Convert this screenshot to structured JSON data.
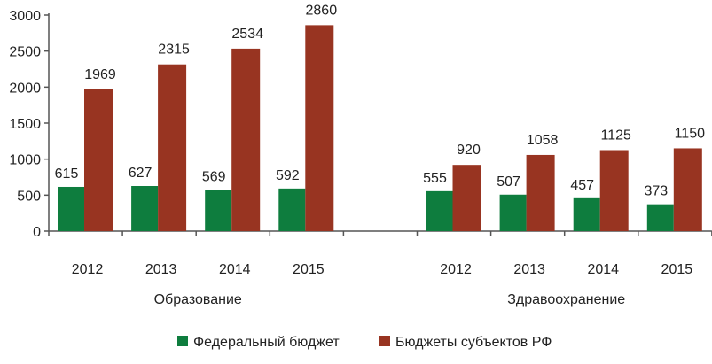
{
  "chart_data": {
    "type": "bar",
    "title": "",
    "xlabel": "",
    "ylabel": "",
    "ylim": [
      0,
      3000
    ],
    "yticks": [
      0,
      500,
      1000,
      1500,
      2000,
      2500,
      3000
    ],
    "grid": false,
    "legend_position": "bottom",
    "groups": [
      {
        "label": "Образование",
        "categories": [
          "2012",
          "2013",
          "2014",
          "2015"
        ]
      },
      {
        "label": "Здравоохранение",
        "categories": [
          "2012",
          "2013",
          "2014",
          "2015"
        ]
      }
    ],
    "series": [
      {
        "name": "Федеральный бюджет",
        "color": "#0e7d3e",
        "values": [
          [
            615,
            627,
            569,
            592
          ],
          [
            555,
            507,
            457,
            373
          ]
        ]
      },
      {
        "name": "Бюджеты субъектов РФ",
        "color": "#983421",
        "values": [
          [
            1969,
            2315,
            2534,
            2860
          ],
          [
            920,
            1058,
            1125,
            1150
          ]
        ]
      }
    ]
  }
}
